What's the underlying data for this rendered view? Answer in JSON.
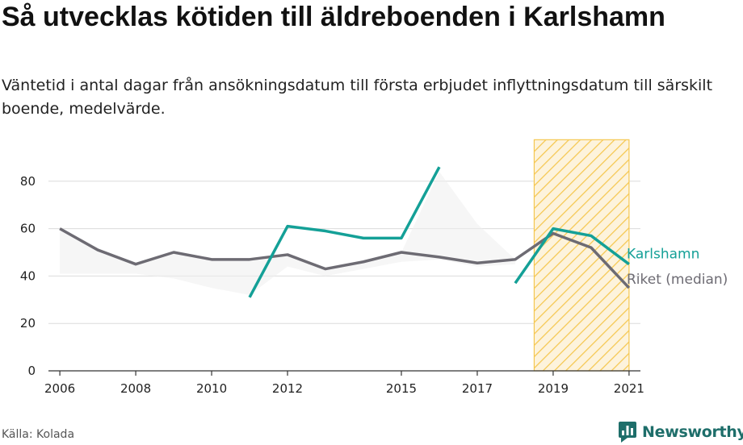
{
  "title": "Så utvecklas kötiden till äldreboenden i Karlshamn",
  "subtitle": "Väntetid i antal dagar från ansökningsdatum till första erbjudet inflyttningsdatum till särskilt boende, medelvärde.",
  "source": "Källa: Kolada",
  "brand": "Newsworthy",
  "colors": {
    "karlshamn": "#14a097",
    "riket": "#6d6b73",
    "highlight": "#f5c750",
    "band": "#efefef",
    "grid": "#dcdcdc",
    "brand": "#1e6e6a"
  },
  "chart_data": {
    "type": "line",
    "ylim": [
      0,
      100
    ],
    "xlim": [
      2005.7,
      2021.3
    ],
    "yticks": [
      0,
      20,
      40,
      60,
      80
    ],
    "xticks": [
      "2006",
      "2008",
      "2010",
      "2012",
      "2015",
      "2017",
      "2019",
      "2021"
    ],
    "grid": true,
    "highlight_span": [
      2018.5,
      2021
    ],
    "series": [
      {
        "name": "Karlshamn",
        "x": [
          2011,
          2012,
          2013,
          2014,
          2015,
          2016,
          2018,
          2019,
          2020,
          2021
        ],
        "y": [
          31,
          61,
          59,
          56,
          56,
          86,
          37,
          60,
          57,
          45
        ],
        "segments": [
          [
            2011,
            2016
          ],
          [
            2018,
            2021
          ]
        ]
      },
      {
        "name": "Riket (median)",
        "x": [
          2006,
          2007,
          2008,
          2009,
          2010,
          2011,
          2012,
          2013,
          2014,
          2015,
          2016,
          2017,
          2018,
          2019,
          2020,
          2021
        ],
        "y": [
          60,
          51,
          45,
          50,
          47,
          47,
          49,
          43,
          46,
          50,
          48,
          45.5,
          47,
          58,
          52,
          35
        ]
      }
    ],
    "band": {
      "x": [
        2006,
        2007,
        2008,
        2009,
        2010,
        2011,
        2012,
        2013,
        2014,
        2015,
        2016,
        2017,
        2018
      ],
      "upper": [
        60,
        51,
        45,
        50,
        47,
        47,
        49,
        43,
        46,
        50,
        84,
        62,
        47
      ],
      "lower": [
        41,
        41,
        41,
        39,
        35,
        32,
        44,
        40,
        43,
        46,
        47,
        44,
        45
      ]
    }
  }
}
